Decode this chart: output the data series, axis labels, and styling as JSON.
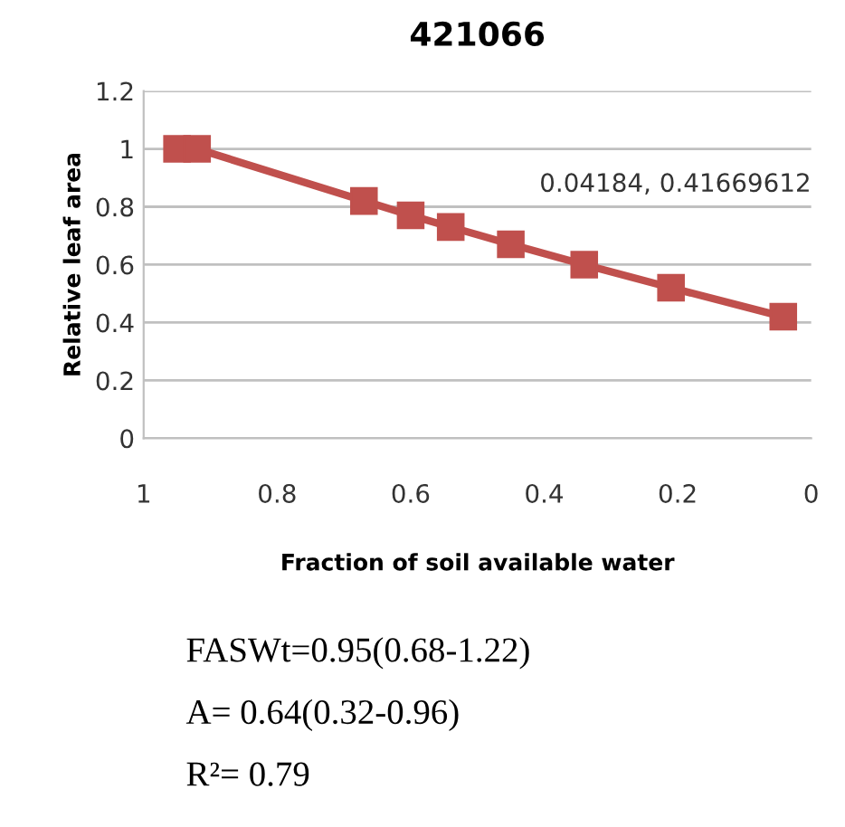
{
  "chart_data": {
    "type": "line",
    "title": "421066",
    "xlabel": "Fraction of soil available water",
    "ylabel": "Relative leaf area",
    "x": [
      0.95,
      0.92,
      0.67,
      0.6,
      0.54,
      0.45,
      0.34,
      0.21,
      0.04184
    ],
    "series": [
      {
        "color": "#c0504d",
        "values": [
          1,
          1,
          0.82,
          0.77,
          0.73,
          0.67,
          0.6,
          0.52,
          0.42
        ]
      }
    ],
    "xlim": [
      1,
      0
    ],
    "xticks": [
      1,
      0.8,
      0.6,
      0.4,
      0.2,
      0
    ],
    "ylim": [
      0,
      1.2
    ],
    "yticks": [
      0,
      0.2,
      0.4,
      0.6,
      0.8,
      1,
      1.2
    ],
    "grid": "y",
    "marker": "square",
    "line_style": "solid",
    "annotations": [
      "0.04184, 0.41669612",
      "FASWt=0.95(0.68-1.22)",
      "A= 0.64(0.32-0.96)",
      "R²= 0.79"
    ]
  }
}
